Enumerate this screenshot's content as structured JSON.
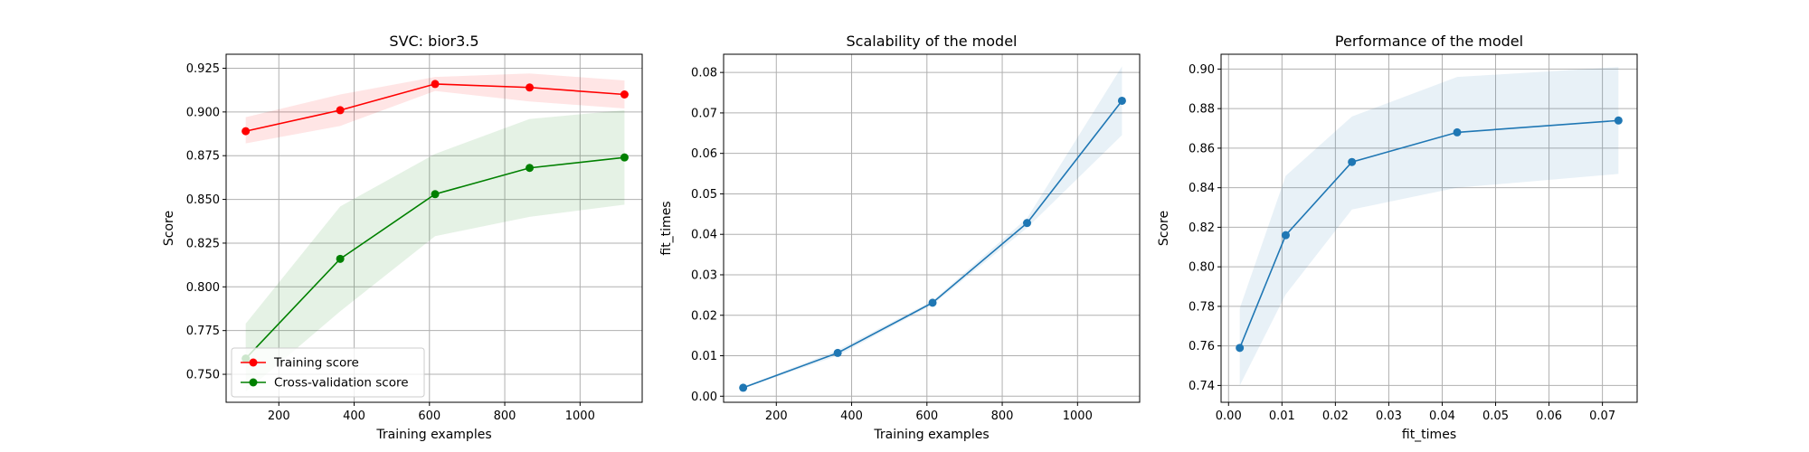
{
  "chart_data": [
    {
      "type": "line",
      "title": "SVC: bior3.5",
      "xlabel": "Training examples",
      "ylabel": "Score",
      "xlim": [
        60,
        1165
      ],
      "ylim": [
        0.734,
        0.933
      ],
      "xticks": [
        200,
        400,
        600,
        800,
        1000
      ],
      "yticks": [
        0.75,
        0.775,
        0.8,
        0.825,
        0.85,
        0.875,
        0.9,
        0.925
      ],
      "ytick_labels": [
        "0.750",
        "0.775",
        "0.800",
        "0.825",
        "0.850",
        "0.875",
        "0.900",
        "0.925"
      ],
      "grid": true,
      "legend": "lower-left",
      "x": [
        112,
        363,
        615,
        866,
        1118
      ],
      "series": [
        {
          "name": "Training score",
          "color": "#ff0000",
          "values": [
            0.889,
            0.901,
            0.916,
            0.914,
            0.91
          ],
          "band_low": [
            0.882,
            0.892,
            0.912,
            0.906,
            0.902
          ],
          "band_high": [
            0.897,
            0.91,
            0.92,
            0.922,
            0.918
          ]
        },
        {
          "name": "Cross-validation score",
          "color": "#008000",
          "values": [
            0.759,
            0.816,
            0.853,
            0.868,
            0.874
          ],
          "band_low": [
            0.74,
            0.786,
            0.829,
            0.84,
            0.847
          ],
          "band_high": [
            0.779,
            0.846,
            0.876,
            0.896,
            0.901
          ]
        }
      ]
    },
    {
      "type": "line",
      "title": "Scalability of the model",
      "xlabel": "Training examples",
      "ylabel": "fit_times",
      "xlim": [
        60,
        1165
      ],
      "ylim": [
        -0.0015,
        0.0845
      ],
      "xticks": [
        200,
        400,
        600,
        800,
        1000
      ],
      "yticks": [
        0.0,
        0.01,
        0.02,
        0.03,
        0.04,
        0.05,
        0.06,
        0.07,
        0.08
      ],
      "ytick_labels": [
        "0.00",
        "0.01",
        "0.02",
        "0.03",
        "0.04",
        "0.05",
        "0.06",
        "0.07",
        "0.08"
      ],
      "grid": true,
      "x": [
        112,
        363,
        615,
        866,
        1118
      ],
      "series": [
        {
          "color": "#1f77b4",
          "values": [
            0.0021,
            0.0107,
            0.0231,
            0.0428,
            0.073
          ],
          "band_low": [
            0.0019,
            0.01,
            0.0226,
            0.0416,
            0.0645
          ],
          "band_high": [
            0.0023,
            0.0114,
            0.0236,
            0.044,
            0.0815
          ]
        }
      ]
    },
    {
      "type": "line",
      "title": "Performance of the model",
      "xlabel": "fit_times",
      "ylabel": "Score",
      "xlim": [
        -0.0014,
        0.0765
      ],
      "ylim": [
        0.7315,
        0.9075
      ],
      "xticks": [
        0.0,
        0.01,
        0.02,
        0.03,
        0.04,
        0.05,
        0.06,
        0.07
      ],
      "xtick_labels": [
        "0.00",
        "0.01",
        "0.02",
        "0.03",
        "0.04",
        "0.05",
        "0.06",
        "0.07"
      ],
      "yticks": [
        0.74,
        0.76,
        0.78,
        0.8,
        0.82,
        0.84,
        0.86,
        0.88,
        0.9
      ],
      "ytick_labels": [
        "0.74",
        "0.76",
        "0.78",
        "0.80",
        "0.82",
        "0.84",
        "0.86",
        "0.88",
        "0.90"
      ],
      "grid": true,
      "x": [
        0.0021,
        0.0107,
        0.0231,
        0.0428,
        0.073
      ],
      "series": [
        {
          "color": "#1f77b4",
          "values": [
            0.759,
            0.816,
            0.853,
            0.868,
            0.874
          ],
          "band_low": [
            0.74,
            0.786,
            0.829,
            0.84,
            0.847
          ],
          "band_high": [
            0.779,
            0.846,
            0.876,
            0.896,
            0.901
          ]
        }
      ]
    }
  ]
}
